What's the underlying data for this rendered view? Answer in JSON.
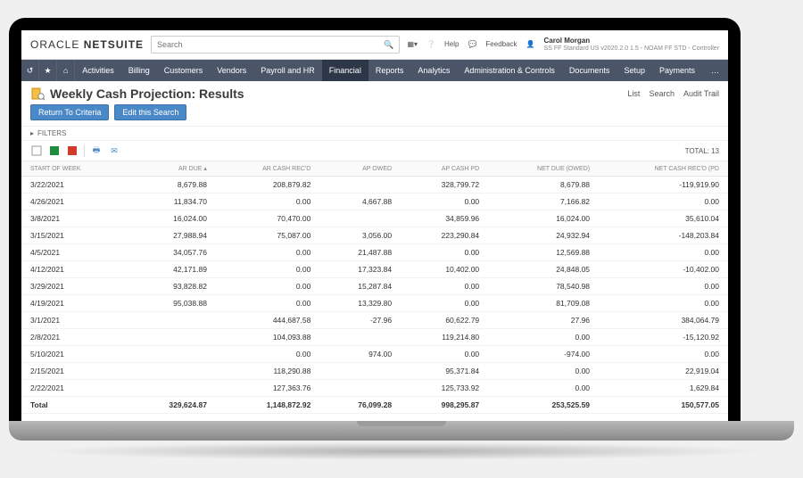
{
  "brand": {
    "part1": "ORACLE",
    "part2": "NETSUITE"
  },
  "search": {
    "placeholder": "Search"
  },
  "header_links": {
    "help": "Help",
    "feedback": "Feedback"
  },
  "user": {
    "name": "Carol Morgan",
    "role": "SS FF Standard US v2020.2.0 1.5 - NOAM FF STD - Controller"
  },
  "nav": {
    "items": [
      "Activities",
      "Billing",
      "Customers",
      "Vendors",
      "Payroll and HR",
      "Financial",
      "Reports",
      "Analytics",
      "Administration & Controls",
      "Documents",
      "Setup",
      "Payments"
    ],
    "active_index": 5,
    "more": "…"
  },
  "page": {
    "title": "Weekly Cash Projection: Results",
    "links": [
      "List",
      "Search",
      "Audit Trail"
    ],
    "buttons": {
      "return": "Return To Criteria",
      "edit": "Edit this Search"
    },
    "filters_label": "FILTERS",
    "total_label": "TOTAL:",
    "total_count": "13"
  },
  "table": {
    "columns": [
      "START OF WEEK",
      "AR DUE ▴",
      "AR CASH REC'D",
      "AP OWED",
      "AP CASH PD",
      "NET DUE (OWED)",
      "NET CASH REC'D (PD"
    ],
    "rows": [
      [
        "3/22/2021",
        "8,679.88",
        "208,879.82",
        "",
        "328,799.72",
        "8,679.88",
        "-119,919.90"
      ],
      [
        "4/26/2021",
        "11,834.70",
        "0.00",
        "4,667.88",
        "0.00",
        "7,166.82",
        "0.00"
      ],
      [
        "3/8/2021",
        "16,024.00",
        "70,470.00",
        "",
        "34,859.96",
        "16,024.00",
        "35,610.04"
      ],
      [
        "3/15/2021",
        "27,988.94",
        "75,087.00",
        "3,056.00",
        "223,290.84",
        "24,932.94",
        "-148,203.84"
      ],
      [
        "4/5/2021",
        "34,057.76",
        "0.00",
        "21,487.88",
        "0.00",
        "12,569.88",
        "0.00"
      ],
      [
        "4/12/2021",
        "42,171.89",
        "0.00",
        "17,323.84",
        "10,402.00",
        "24,848.05",
        "-10,402.00"
      ],
      [
        "3/29/2021",
        "93,828.82",
        "0.00",
        "15,287.84",
        "0.00",
        "78,540.98",
        "0.00"
      ],
      [
        "4/19/2021",
        "95,038.88",
        "0.00",
        "13,329.80",
        "0.00",
        "81,709.08",
        "0.00"
      ],
      [
        "3/1/2021",
        "",
        "444,687.58",
        "-27.96",
        "60,622.79",
        "27.96",
        "384,064.79"
      ],
      [
        "2/8/2021",
        "",
        "104,093.88",
        "",
        "119,214.80",
        "0.00",
        "-15,120.92"
      ],
      [
        "5/10/2021",
        "",
        "0.00",
        "974.00",
        "0.00",
        "-974.00",
        "0.00"
      ],
      [
        "2/15/2021",
        "",
        "118,290.88",
        "",
        "95,371.84",
        "0.00",
        "22,919.04"
      ],
      [
        "2/22/2021",
        "",
        "127,363.76",
        "",
        "125,733.92",
        "0.00",
        "1,629.84"
      ]
    ],
    "total_row": [
      "Total",
      "329,624.87",
      "1,148,872.92",
      "76,099.28",
      "998,295.87",
      "253,525.59",
      "150,577.05"
    ]
  }
}
